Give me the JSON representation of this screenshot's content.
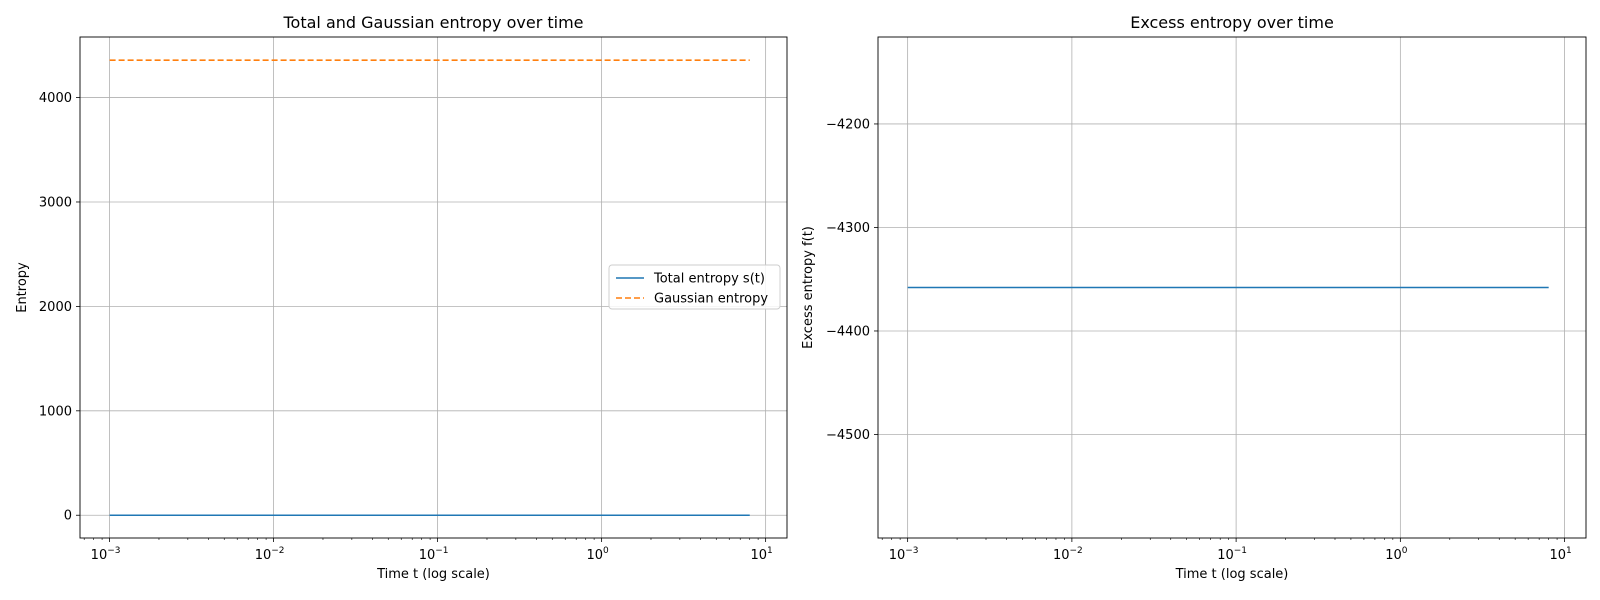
{
  "chart_data": [
    {
      "type": "line",
      "title": "Total and Gaussian entropy over time",
      "xlabel": "Time t (log scale)",
      "ylabel": "Entropy",
      "xscale": "log",
      "xlim": [
        0.00066,
        13.5
      ],
      "ylim": [
        -218,
        4580
      ],
      "xticks": [
        {
          "value": 0.001,
          "base": "10",
          "exp": "−3"
        },
        {
          "value": 0.01,
          "base": "10",
          "exp": "−2"
        },
        {
          "value": 0.1,
          "base": "10",
          "exp": "−1"
        },
        {
          "value": 1,
          "base": "10",
          "exp": "0"
        },
        {
          "value": 10,
          "base": "10",
          "exp": "1"
        }
      ],
      "yticks": [
        {
          "value": 0,
          "label": "0"
        },
        {
          "value": 1000,
          "label": "1000"
        },
        {
          "value": 2000,
          "label": "2000"
        },
        {
          "value": 3000,
          "label": "3000"
        },
        {
          "value": 4000,
          "label": "4000"
        }
      ],
      "grid": true,
      "legend_position": "center-right",
      "series": [
        {
          "name": "Total entropy s(t)",
          "color": "#1f77b4",
          "style": "solid",
          "x": [
            0.001,
            8
          ],
          "y": [
            0,
            0
          ]
        },
        {
          "name": "Gaussian entropy",
          "color": "#ff7f0e",
          "style": "dashed",
          "x": [
            0.001,
            8
          ],
          "y": [
            4358,
            4358
          ]
        }
      ]
    },
    {
      "type": "line",
      "title": "Excess entropy over time",
      "xlabel": "Time t (log scale)",
      "ylabel": "Excess entropy f(t)",
      "xscale": "log",
      "xlim": [
        0.00066,
        13.5
      ],
      "ylim": [
        -4600,
        -4116
      ],
      "xticks": [
        {
          "value": 0.001,
          "base": "10",
          "exp": "−3"
        },
        {
          "value": 0.01,
          "base": "10",
          "exp": "−2"
        },
        {
          "value": 0.1,
          "base": "10",
          "exp": "−1"
        },
        {
          "value": 1,
          "base": "10",
          "exp": "0"
        },
        {
          "value": 10,
          "base": "10",
          "exp": "1"
        }
      ],
      "yticks": [
        {
          "value": -4500,
          "label": "−4500"
        },
        {
          "value": -4400,
          "label": "−4400"
        },
        {
          "value": -4300,
          "label": "−4300"
        },
        {
          "value": -4200,
          "label": "−4200"
        }
      ],
      "grid": true,
      "series": [
        {
          "color": "#1f77b4",
          "style": "solid",
          "x": [
            0.001,
            8
          ],
          "y": [
            -4358,
            -4358
          ]
        }
      ]
    }
  ]
}
